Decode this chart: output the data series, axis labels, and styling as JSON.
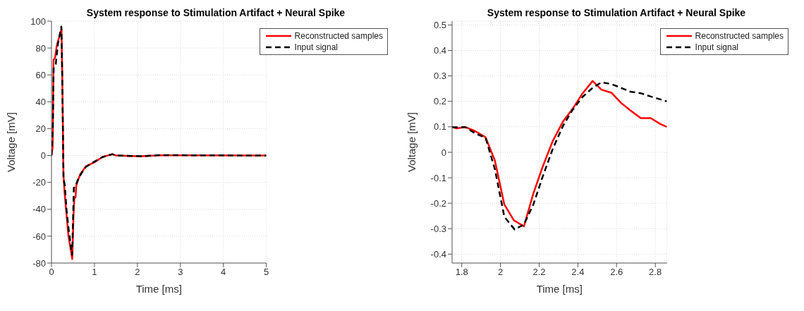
{
  "chart_data": [
    {
      "type": "line",
      "title": "System response to Stimulation Artifact + Neural Spike",
      "xlabel": "Time [ms]",
      "ylabel": "Voltage [mV]",
      "xlim": [
        0,
        5
      ],
      "xticks": [
        0,
        1,
        2,
        3,
        4,
        5
      ],
      "ylim": [
        -80,
        100
      ],
      "yticks": [
        -80,
        -60,
        -40,
        -20,
        0,
        20,
        40,
        60,
        80,
        100
      ],
      "grid": true,
      "legend": "top right",
      "marker": "none",
      "series": [
        {
          "name": "Reconstructed samples",
          "color": "#ff0000",
          "line_style": "solid",
          "x": [
            0,
            0.027,
            0.047,
            0.085,
            0.124,
            0.233,
            0.25,
            0.279,
            0.306,
            0.345,
            0.395,
            0.484,
            0.512,
            0.531,
            0.56,
            0.578,
            0.667,
            0.802,
            0.996,
            1.19,
            1.42,
            1.5,
            2.0,
            2.1,
            2.5,
            5
          ],
          "values": [
            0,
            6,
            71,
            73,
            82,
            94,
            61,
            -15,
            -28,
            -42,
            -60,
            -77,
            -45,
            -32,
            -31,
            -22,
            -14,
            -8,
            -5,
            -1,
            1,
            0,
            -0.5,
            -0.5,
            0.2,
            0
          ]
        },
        {
          "name": "Input signal",
          "color": "#000000",
          "line_style": "dashed",
          "x": [
            0,
            0.03,
            0.05,
            0.1,
            0.15,
            0.23,
            0.25,
            0.28,
            0.31,
            0.35,
            0.4,
            0.48,
            0.5,
            0.52,
            0.56,
            0.6,
            0.7,
            0.8,
            1.0,
            1.2,
            1.42,
            1.5,
            2.1,
            2.5,
            5
          ],
          "values": [
            0,
            20,
            65,
            68,
            83,
            96,
            60,
            -17,
            -22,
            -40,
            -55,
            -74,
            -50,
            -24,
            -23,
            -19,
            -13,
            -8.5,
            -4.5,
            -1,
            1,
            0,
            -0.5,
            0.3,
            0
          ]
        }
      ]
    },
    {
      "type": "line",
      "title": "System response to Stimulation Artifact + Neural Spike",
      "xlabel": "Time [ms]",
      "ylabel": "Voltage [mV]",
      "xlim": [
        1.75,
        2.86
      ],
      "xticks": [
        1.8,
        2,
        2.2,
        2.4,
        2.6,
        2.8
      ],
      "ylim": [
        -0.435,
        0.515
      ],
      "yticks": [
        -0.4,
        -0.3,
        -0.2,
        -0.1,
        0,
        0.1,
        0.2,
        0.3,
        0.4,
        0.5
      ],
      "grid": true,
      "legend": "top right",
      "marker": "none",
      "series": [
        {
          "name": "Reconstructed samples",
          "color": "#ff0000",
          "line_style": "solid",
          "x": [
            1.75,
            1.773,
            1.818,
            1.87,
            1.923,
            1.971,
            2.02,
            2.069,
            2.121,
            2.17,
            2.218,
            2.27,
            2.324,
            2.372,
            2.425,
            2.476,
            2.522,
            2.573,
            2.623,
            2.672,
            2.725,
            2.777,
            2.826,
            2.86
          ],
          "values": [
            0.1,
            0.094,
            0.099,
            0.083,
            0.059,
            -0.032,
            -0.205,
            -0.267,
            -0.291,
            -0.162,
            -0.057,
            0.044,
            0.122,
            0.17,
            0.232,
            0.28,
            0.246,
            0.234,
            0.194,
            0.164,
            0.134,
            0.134,
            0.111,
            0.1
          ]
        },
        {
          "name": "Input signal",
          "color": "#000000",
          "line_style": "dashed",
          "x": [
            1.75,
            1.818,
            1.87,
            1.923,
            1.971,
            2.02,
            2.073,
            2.121,
            2.17,
            2.218,
            2.27,
            2.324,
            2.372,
            2.425,
            2.476,
            2.522,
            2.573,
            2.623,
            2.672,
            2.725,
            2.777,
            2.826,
            2.86
          ],
          "values": [
            0.098,
            0.099,
            0.074,
            0.057,
            -0.066,
            -0.253,
            -0.303,
            -0.284,
            -0.205,
            -0.096,
            0.013,
            0.105,
            0.166,
            0.218,
            0.253,
            0.275,
            0.268,
            0.253,
            0.238,
            0.232,
            0.219,
            0.208,
            0.2
          ]
        }
      ]
    }
  ]
}
